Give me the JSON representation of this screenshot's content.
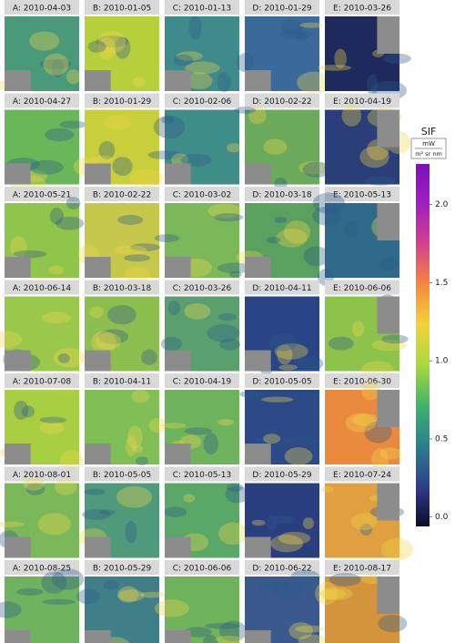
{
  "chart_data": {
    "type": "map_grid",
    "panels": [
      [
        "A: 2010-04-03",
        "B: 2010-01-05",
        "C: 2010-01-13",
        "D: 2010-01-29",
        "E: 2010-03-26"
      ],
      [
        "A: 2010-04-27",
        "B: 2010-01-29",
        "C: 2010-02-06",
        "D: 2010-02-22",
        "E: 2010-04-19"
      ],
      [
        "A: 2010-05-21",
        "B: 2010-02-22",
        "C: 2010-03-02",
        "D: 2010-03-18",
        "E: 2010-05-13"
      ],
      [
        "A: 2010-06-14",
        "B: 2010-03-18",
        "C: 2010-03-26",
        "D: 2010-04-11",
        "E: 2010-06-06"
      ],
      [
        "A: 2010-07-08",
        "B: 2010-04-11",
        "C: 2010-04-19",
        "D: 2010-05-05",
        "E: 2010-06-30"
      ],
      [
        "A: 2010-08-01",
        "B: 2010-05-05",
        "C: 2010-05-13",
        "D: 2010-05-29",
        "E: 2010-07-24"
      ],
      [
        "A: 2010-08-25",
        "B: 2010-05-29",
        "C: 2010-06-06",
        "D: 2010-06-22",
        "E: 2010-08-17"
      ]
    ],
    "colorbar": {
      "title": "SIF",
      "units": {
        "numerator": "mW",
        "denominator": "m² sr nm"
      },
      "lim": [
        -0.06,
        2.26
      ],
      "ticks": [
        {
          "value": 0,
          "label": "0.0"
        },
        0.5,
        {
          "value": 1,
          "label": "1.0"
        },
        1.5,
        {
          "value": 2,
          "label": "2.0"
        }
      ],
      "colors": [
        "#0d0a2e",
        "#2e3f8a",
        "#2a7f8e",
        "#3fb46a",
        "#a8d93a",
        "#f3d23b",
        "#f58a3a",
        "#d6418a",
        "#a21fc0",
        "#7c11b8"
      ]
    }
  }
}
